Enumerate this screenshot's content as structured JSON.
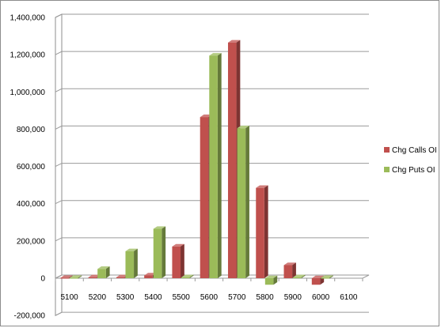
{
  "chart_data": {
    "type": "bar",
    "categories": [
      "5100",
      "5200",
      "5300",
      "5400",
      "5500",
      "5600",
      "5700",
      "5800",
      "5900",
      "6000",
      "6100"
    ],
    "series": [
      {
        "name": "Chg Calls OI",
        "color": "#c0504d",
        "values": [
          2000,
          5000,
          5000,
          15000,
          170000,
          865000,
          1265000,
          485000,
          70000,
          -35000,
          0
        ]
      },
      {
        "name": "Chg Puts OI",
        "color": "#9bbb59",
        "values": [
          2000,
          50000,
          145000,
          265000,
          5000,
          1195000,
          805000,
          -35000,
          5000,
          2000,
          0
        ]
      }
    ],
    "y_ticks": [
      "1,400,000",
      "1,200,000",
      "1,000,000",
      "800,000",
      "600,000",
      "400,000",
      "200,000",
      "0",
      "-200,000"
    ],
    "ylim": [
      -200000,
      1400000
    ],
    "grid": "horizontal",
    "legend_position": "right",
    "style": "3d-clustered-column"
  }
}
